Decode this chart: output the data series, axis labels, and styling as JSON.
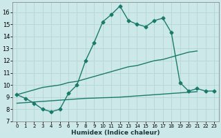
{
  "xlabel": "Humidex (Indice chaleur)",
  "bg_color": "#cce8e8",
  "line_color": "#1a7a6a",
  "grid_color": "#b8d8d8",
  "xlim": [
    -0.5,
    23.5
  ],
  "ylim": [
    7,
    16.8
  ],
  "xticks": [
    0,
    1,
    2,
    3,
    4,
    5,
    6,
    7,
    8,
    9,
    10,
    11,
    12,
    13,
    14,
    15,
    16,
    17,
    18,
    19,
    20,
    21,
    22,
    23
  ],
  "yticks": [
    7,
    8,
    9,
    10,
    11,
    12,
    13,
    14,
    15,
    16
  ],
  "line1_x": [
    0,
    1,
    2,
    3,
    4,
    5,
    6,
    7,
    8,
    9,
    10,
    11,
    12,
    13,
    14,
    15,
    16,
    17,
    18,
    19,
    20,
    21,
    22,
    23
  ],
  "line1_y": [
    9.2,
    8.9,
    8.5,
    8.0,
    7.8,
    8.0,
    9.3,
    10.0,
    12.0,
    13.5,
    15.2,
    15.8,
    16.5,
    15.3,
    15.0,
    14.8,
    15.3,
    15.5,
    14.3,
    10.2,
    9.5,
    9.7,
    9.5,
    9.5
  ],
  "line2_x": [
    0,
    1,
    2,
    3,
    4,
    5,
    6,
    7,
    8,
    9,
    10,
    11,
    12,
    13,
    14,
    15,
    16,
    17,
    18,
    19,
    20,
    21
  ],
  "line2_y": [
    9.2,
    9.4,
    9.6,
    9.8,
    9.9,
    10.0,
    10.2,
    10.3,
    10.5,
    10.7,
    10.9,
    11.1,
    11.3,
    11.5,
    11.6,
    11.8,
    12.0,
    12.1,
    12.3,
    12.5,
    12.7,
    12.8
  ],
  "line3_x": [
    0,
    1,
    2,
    3,
    4,
    5,
    6,
    7,
    8,
    9,
    10,
    11,
    12,
    13,
    14,
    15,
    16,
    17,
    18,
    19,
    20,
    21
  ],
  "line3_y": [
    8.5,
    8.55,
    8.6,
    8.65,
    8.7,
    8.75,
    8.8,
    8.85,
    8.9,
    8.92,
    8.95,
    8.97,
    9.0,
    9.05,
    9.1,
    9.15,
    9.2,
    9.25,
    9.3,
    9.35,
    9.4,
    9.45
  ],
  "marker": "D",
  "markersize": 2.5,
  "linewidth": 1.0,
  "tick_fontsize": 5.5,
  "xlabel_fontsize": 6.5
}
